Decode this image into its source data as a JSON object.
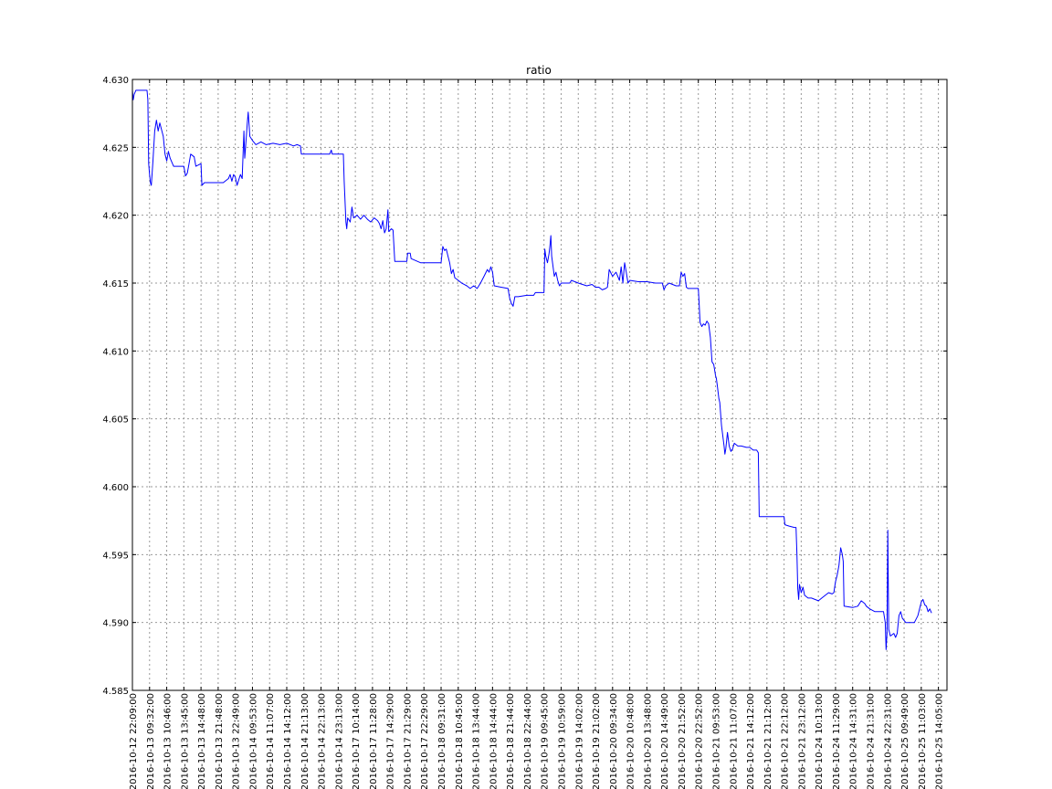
{
  "chart_data": {
    "type": "line",
    "title": "ratio",
    "xlabel": "",
    "ylabel": "",
    "ylim": [
      4.585,
      4.63
    ],
    "yticks": [
      "4.585",
      "4.590",
      "4.595",
      "4.600",
      "4.605",
      "4.610",
      "4.615",
      "4.620",
      "4.625",
      "4.630"
    ],
    "xtick_labels": [
      "2016-10-12 22:09:00",
      "2016-10-13 09:32:00",
      "2016-10-13 10:46:00",
      "2016-10-13 13:45:00",
      "2016-10-13 14:48:00",
      "2016-10-13 21:48:00",
      "2016-10-13 22:49:00",
      "2016-10-14 09:53:00",
      "2016-10-14 11:07:00",
      "2016-10-14 14:12:00",
      "2016-10-14 21:13:00",
      "2016-10-14 22:13:00",
      "2016-10-14 23:13:00",
      "2016-10-17 10:14:00",
      "2016-10-17 11:28:00",
      "2016-10-17 14:29:00",
      "2016-10-17 21:29:00",
      "2016-10-17 22:29:00",
      "2016-10-18 09:31:00",
      "2016-10-18 10:45:00",
      "2016-10-18 13:44:00",
      "2016-10-18 14:44:00",
      "2016-10-18 21:44:00",
      "2016-10-18 22:44:00",
      "2016-10-19 09:45:00",
      "2016-10-19 10:59:00",
      "2016-10-19 14:02:00",
      "2016-10-19 21:02:00",
      "2016-10-20 09:34:00",
      "2016-10-20 10:48:00",
      "2016-10-20 13:48:00",
      "2016-10-20 14:49:00",
      "2016-10-20 21:52:00",
      "2016-10-20 22:52:00",
      "2016-10-21 09:53:00",
      "2016-10-21 11:07:00",
      "2016-10-21 14:12:00",
      "2016-10-21 21:12:00",
      "2016-10-21 22:12:00",
      "2016-10-21 23:12:00",
      "2016-10-24 10:13:00",
      "2016-10-24 11:29:00",
      "2016-10-24 14:31:00",
      "2016-10-24 21:31:00",
      "2016-10-24 22:31:00",
      "2016-10-25 09:49:00",
      "2016-10-25 11:03:00",
      "2016-10-25 14:05:00"
    ],
    "grid": true,
    "x_range": [
      0,
      47.5
    ],
    "series": [
      {
        "name": "",
        "color": "#0000ff",
        "points": [
          [
            0.0,
            4.6292
          ],
          [
            0.05,
            4.6285
          ],
          [
            0.1,
            4.6289
          ],
          [
            0.2,
            4.6292
          ],
          [
            0.6,
            4.6292
          ],
          [
            0.85,
            4.6292
          ],
          [
            0.9,
            4.6285
          ],
          [
            0.95,
            4.6238
          ],
          [
            1.0,
            4.623
          ],
          [
            1.05,
            4.6224
          ],
          [
            1.1,
            4.6222
          ],
          [
            1.2,
            4.624
          ],
          [
            1.3,
            4.6262
          ],
          [
            1.4,
            4.627
          ],
          [
            1.5,
            4.6262
          ],
          [
            1.6,
            4.6268
          ],
          [
            1.8,
            4.6258
          ],
          [
            1.9,
            4.6245
          ],
          [
            2.0,
            4.624
          ],
          [
            2.1,
            4.6247
          ],
          [
            2.2,
            4.6242
          ],
          [
            2.4,
            4.6236
          ],
          [
            2.6,
            4.6236
          ],
          [
            3.0,
            4.6236
          ],
          [
            3.1,
            4.6229
          ],
          [
            3.2,
            4.6231
          ],
          [
            3.3,
            4.6238
          ],
          [
            3.4,
            4.6245
          ],
          [
            3.6,
            4.6243
          ],
          [
            3.7,
            4.6236
          ],
          [
            4.0,
            4.6238
          ],
          [
            4.05,
            4.6222
          ],
          [
            4.2,
            4.6224
          ],
          [
            4.6,
            4.6224
          ],
          [
            5.0,
            4.6224
          ],
          [
            5.3,
            4.6224
          ],
          [
            5.6,
            4.6227
          ],
          [
            5.7,
            4.623
          ],
          [
            5.8,
            4.6225
          ],
          [
            5.9,
            4.623
          ],
          [
            6.0,
            4.6228
          ],
          [
            6.1,
            4.6222
          ],
          [
            6.2,
            4.6226
          ],
          [
            6.3,
            4.623
          ],
          [
            6.4,
            4.6227
          ],
          [
            6.5,
            4.6262
          ],
          [
            6.55,
            4.6242
          ],
          [
            6.6,
            4.625
          ],
          [
            6.7,
            4.6268
          ],
          [
            6.75,
            4.6276
          ],
          [
            6.85,
            4.6258
          ],
          [
            7.0,
            4.6255
          ],
          [
            7.2,
            4.6252
          ],
          [
            7.5,
            4.6254
          ],
          [
            7.8,
            4.6252
          ],
          [
            8.2,
            4.6253
          ],
          [
            8.6,
            4.6252
          ],
          [
            9.0,
            4.6253
          ],
          [
            9.4,
            4.6251
          ],
          [
            9.6,
            4.6252
          ],
          [
            9.8,
            4.6251
          ],
          [
            9.85,
            4.6245
          ],
          [
            10.5,
            4.6245
          ],
          [
            11.2,
            4.6245
          ],
          [
            11.5,
            4.6245
          ],
          [
            11.6,
            4.6248
          ],
          [
            11.65,
            4.6245
          ],
          [
            12.0,
            4.6245
          ],
          [
            12.3,
            4.6245
          ],
          [
            12.35,
            4.6225
          ],
          [
            12.45,
            4.6195
          ],
          [
            12.5,
            4.619
          ],
          [
            12.55,
            4.6198
          ],
          [
            12.7,
            4.6195
          ],
          [
            12.8,
            4.6206
          ],
          [
            12.9,
            4.6198
          ],
          [
            13.1,
            4.62
          ],
          [
            13.3,
            4.6197
          ],
          [
            13.5,
            4.62
          ],
          [
            13.7,
            4.6197
          ],
          [
            13.9,
            4.6195
          ],
          [
            14.1,
            4.6198
          ],
          [
            14.3,
            4.6196
          ],
          [
            14.4,
            4.6194
          ],
          [
            14.5,
            4.619
          ],
          [
            14.6,
            4.6196
          ],
          [
            14.7,
            4.6187
          ],
          [
            14.8,
            4.619
          ],
          [
            14.9,
            4.6204
          ],
          [
            14.95,
            4.6188
          ],
          [
            15.1,
            4.619
          ],
          [
            15.2,
            4.6189
          ],
          [
            15.3,
            4.6166
          ],
          [
            15.7,
            4.6166
          ],
          [
            16.0,
            4.6166
          ],
          [
            16.05,
            4.6172
          ],
          [
            16.2,
            4.6172
          ],
          [
            16.25,
            4.6168
          ],
          [
            16.8,
            4.6165
          ],
          [
            17.5,
            4.6165
          ],
          [
            18.0,
            4.6165
          ],
          [
            18.1,
            4.6177
          ],
          [
            18.2,
            4.6174
          ],
          [
            18.3,
            4.6175
          ],
          [
            18.4,
            4.617
          ],
          [
            18.5,
            4.6165
          ],
          [
            18.6,
            4.6157
          ],
          [
            18.7,
            4.616
          ],
          [
            18.8,
            4.6154
          ],
          [
            19.0,
            4.6152
          ],
          [
            19.2,
            4.615
          ],
          [
            19.5,
            4.6148
          ],
          [
            19.7,
            4.6146
          ],
          [
            19.9,
            4.6148
          ],
          [
            20.1,
            4.6146
          ],
          [
            20.3,
            4.615
          ],
          [
            20.5,
            4.6155
          ],
          [
            20.7,
            4.616
          ],
          [
            20.8,
            4.6158
          ],
          [
            20.9,
            4.6162
          ],
          [
            21.0,
            4.6158
          ],
          [
            21.1,
            4.6148
          ],
          [
            21.5,
            4.6147
          ],
          [
            21.9,
            4.6146
          ],
          [
            22.0,
            4.6139
          ],
          [
            22.1,
            4.6135
          ],
          [
            22.2,
            4.6133
          ],
          [
            22.3,
            4.614
          ],
          [
            22.5,
            4.614
          ],
          [
            23.0,
            4.6141
          ],
          [
            23.4,
            4.6141
          ],
          [
            23.5,
            4.6143
          ],
          [
            24.0,
            4.6143
          ],
          [
            24.05,
            4.6175
          ],
          [
            24.1,
            4.617
          ],
          [
            24.2,
            4.6165
          ],
          [
            24.3,
            4.6172
          ],
          [
            24.35,
            4.6178
          ],
          [
            24.4,
            4.6185
          ],
          [
            24.45,
            4.617
          ],
          [
            24.6,
            4.6155
          ],
          [
            24.7,
            4.6158
          ],
          [
            24.8,
            4.6152
          ],
          [
            24.9,
            4.6148
          ],
          [
            25.0,
            4.615
          ],
          [
            25.5,
            4.615
          ],
          [
            25.6,
            4.6152
          ],
          [
            26.0,
            4.615
          ],
          [
            26.5,
            4.6148
          ],
          [
            26.8,
            4.6149
          ],
          [
            27.0,
            4.6147
          ],
          [
            27.2,
            4.6147
          ],
          [
            27.4,
            4.6145
          ],
          [
            27.6,
            4.6146
          ],
          [
            27.7,
            4.6147
          ],
          [
            27.8,
            4.616
          ],
          [
            28.0,
            4.6155
          ],
          [
            28.2,
            4.6158
          ],
          [
            28.4,
            4.6152
          ],
          [
            28.5,
            4.6162
          ],
          [
            28.6,
            4.615
          ],
          [
            28.7,
            4.6165
          ],
          [
            28.8,
            4.6158
          ],
          [
            28.9,
            4.615
          ],
          [
            29.0,
            4.6152
          ],
          [
            29.5,
            4.6151
          ],
          [
            30.0,
            4.6151
          ],
          [
            30.5,
            4.615
          ],
          [
            30.9,
            4.615
          ],
          [
            31.0,
            4.6145
          ],
          [
            31.1,
            4.6148
          ],
          [
            31.3,
            4.615
          ],
          [
            31.5,
            4.6149
          ],
          [
            31.7,
            4.6148
          ],
          [
            31.9,
            4.6148
          ],
          [
            32.0,
            4.6158
          ],
          [
            32.1,
            4.6155
          ],
          [
            32.2,
            4.6157
          ],
          [
            32.3,
            4.6147
          ],
          [
            32.4,
            4.6146
          ],
          [
            32.6,
            4.6146
          ],
          [
            32.9,
            4.6146
          ],
          [
            33.0,
            4.6146
          ],
          [
            33.05,
            4.6135
          ],
          [
            33.1,
            4.6121
          ],
          [
            33.2,
            4.6118
          ],
          [
            33.3,
            4.612
          ],
          [
            33.4,
            4.6119
          ],
          [
            33.5,
            4.6122
          ],
          [
            33.6,
            4.612
          ],
          [
            33.7,
            4.611
          ],
          [
            33.8,
            4.6092
          ],
          [
            33.9,
            4.609
          ],
          [
            34.0,
            4.6082
          ],
          [
            34.05,
            4.608
          ],
          [
            34.1,
            4.6075
          ],
          [
            34.2,
            4.6065
          ],
          [
            34.25,
            4.6062
          ],
          [
            34.35,
            4.6045
          ],
          [
            34.5,
            4.603
          ],
          [
            34.55,
            4.6024
          ],
          [
            34.6,
            4.6028
          ],
          [
            34.7,
            4.604
          ],
          [
            34.8,
            4.603
          ],
          [
            34.9,
            4.6026
          ],
          [
            35.0,
            4.6028
          ],
          [
            35.1,
            4.6032
          ],
          [
            35.3,
            4.603
          ],
          [
            35.5,
            4.603
          ],
          [
            35.8,
            4.6029
          ],
          [
            36.0,
            4.6029
          ],
          [
            36.2,
            4.6027
          ],
          [
            36.4,
            4.6027
          ],
          [
            36.5,
            4.6025
          ],
          [
            36.55,
            4.5978
          ],
          [
            37.0,
            4.5978
          ],
          [
            37.8,
            4.5978
          ],
          [
            38.0,
            4.5978
          ],
          [
            38.05,
            4.5972
          ],
          [
            38.3,
            4.5971
          ],
          [
            38.6,
            4.597
          ],
          [
            38.7,
            4.597
          ],
          [
            38.75,
            4.595
          ],
          [
            38.8,
            4.5925
          ],
          [
            38.85,
            4.5917
          ],
          [
            38.9,
            4.5928
          ],
          [
            39.0,
            4.5922
          ],
          [
            39.1,
            4.5926
          ],
          [
            39.2,
            4.592
          ],
          [
            39.4,
            4.5918
          ],
          [
            39.6,
            4.5918
          ],
          [
            39.8,
            4.5917
          ],
          [
            40.0,
            4.5916
          ],
          [
            40.2,
            4.5918
          ],
          [
            40.4,
            4.592
          ],
          [
            40.6,
            4.5922
          ],
          [
            40.8,
            4.5921
          ],
          [
            40.9,
            4.5922
          ],
          [
            41.0,
            4.593
          ],
          [
            41.1,
            4.5935
          ],
          [
            41.2,
            4.5942
          ],
          [
            41.3,
            4.5955
          ],
          [
            41.4,
            4.595
          ],
          [
            41.45,
            4.5945
          ],
          [
            41.5,
            4.5912
          ],
          [
            42.0,
            4.5911
          ],
          [
            42.3,
            4.5912
          ],
          [
            42.5,
            4.5916
          ],
          [
            42.7,
            4.5914
          ],
          [
            42.8,
            4.5912
          ],
          [
            43.0,
            4.591
          ],
          [
            43.3,
            4.5908
          ],
          [
            43.8,
            4.5908
          ],
          [
            43.9,
            4.59
          ],
          [
            43.95,
            4.588
          ],
          [
            44.0,
            4.5892
          ],
          [
            44.05,
            4.5968
          ],
          [
            44.1,
            4.5895
          ],
          [
            44.2,
            4.589
          ],
          [
            44.4,
            4.5892
          ],
          [
            44.5,
            4.5889
          ],
          [
            44.6,
            4.5892
          ],
          [
            44.7,
            4.5905
          ],
          [
            44.8,
            4.5908
          ],
          [
            44.9,
            4.5903
          ],
          [
            45.1,
            4.59
          ],
          [
            45.3,
            4.59
          ],
          [
            45.6,
            4.59
          ],
          [
            45.8,
            4.5905
          ],
          [
            46.0,
            4.5915
          ],
          [
            46.1,
            4.5917
          ],
          [
            46.2,
            4.5913
          ],
          [
            46.3,
            4.5912
          ],
          [
            46.4,
            4.5908
          ],
          [
            46.5,
            4.591
          ],
          [
            46.6,
            4.5907
          ]
        ]
      }
    ]
  }
}
